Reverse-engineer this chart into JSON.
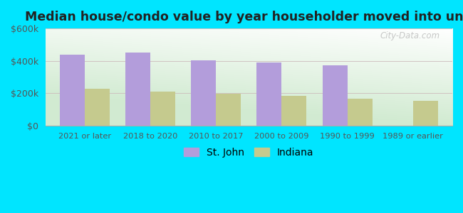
{
  "title": "Median house/condo value by year householder moved into unit",
  "categories": [
    "2021 or later",
    "2018 to 2020",
    "2010 to 2017",
    "2000 to 2009",
    "1990 to 1999",
    "1989 or earlier"
  ],
  "st_john_values": [
    440000,
    452000,
    405000,
    390000,
    372000,
    0
  ],
  "indiana_values": [
    227000,
    210000,
    196000,
    183000,
    168000,
    152000
  ],
  "st_john_color": "#b39ddb",
  "indiana_color": "#c5ca8e",
  "background_outer": "#00e5ff",
  "ylim": [
    0,
    600000
  ],
  "yticks": [
    0,
    200000,
    400000,
    600000
  ],
  "ytick_labels": [
    "$0",
    "$200k",
    "$400k",
    "$600k"
  ],
  "bar_width": 0.38,
  "legend_labels": [
    "St. John",
    "Indiana"
  ],
  "watermark": "City-Data.com",
  "figsize": [
    6.5,
    3.0
  ],
  "dpi": 100
}
